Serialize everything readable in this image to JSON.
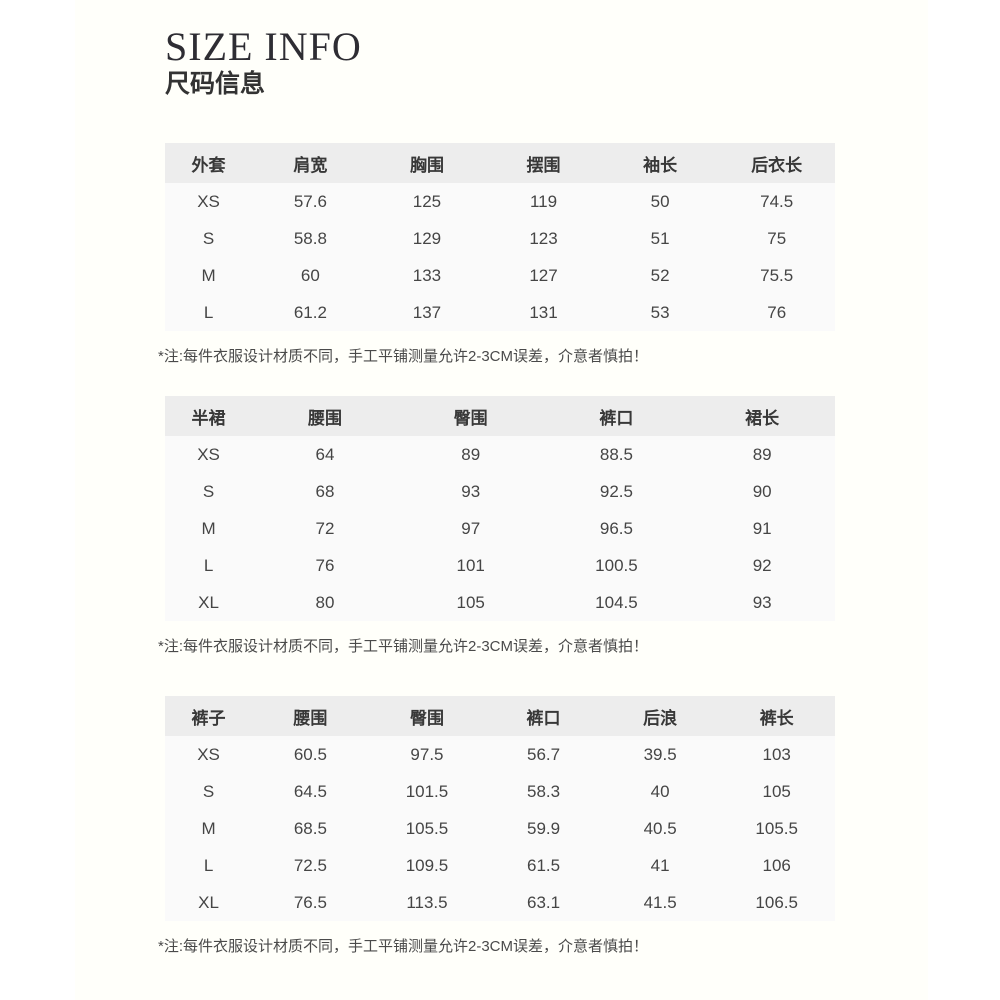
{
  "page": {
    "title_en": "SIZE INFO",
    "title_zh": "尺码信息"
  },
  "colors": {
    "page_margin_bg": "#ffffff",
    "content_bg": "#fffffa",
    "header_row_bg": "#ededed",
    "table_body_bg": "#fafafa",
    "text": "#454545"
  },
  "tables": [
    {
      "name": "outerwear",
      "headers": [
        "外套",
        "肩宽",
        "胸围",
        "摆围",
        "袖长",
        "后衣长"
      ],
      "rows": [
        [
          "XS",
          "57.6",
          "125",
          "119",
          "50",
          "74.5"
        ],
        [
          "S",
          "58.8",
          "129",
          "123",
          "51",
          "75"
        ],
        [
          "M",
          "60",
          "133",
          "127",
          "52",
          "75.5"
        ],
        [
          "L",
          "61.2",
          "137",
          "131",
          "53",
          "76"
        ]
      ],
      "note": "*注:每件衣服设计材质不同，手工平铺测量允许2-3CM误差，介意者慎拍！"
    },
    {
      "name": "skirt",
      "headers": [
        "半裙",
        "腰围",
        "臀围",
        "裤口",
        "裙长"
      ],
      "rows": [
        [
          "XS",
          "64",
          "89",
          "88.5",
          "89"
        ],
        [
          "S",
          "68",
          "93",
          "92.5",
          "90"
        ],
        [
          "M",
          "72",
          "97",
          "96.5",
          "91"
        ],
        [
          "L",
          "76",
          "101",
          "100.5",
          "92"
        ],
        [
          "XL",
          "80",
          "105",
          "104.5",
          "93"
        ]
      ],
      "note": "*注:每件衣服设计材质不同，手工平铺测量允许2-3CM误差，介意者慎拍！"
    },
    {
      "name": "pants",
      "headers": [
        "裤子",
        "腰围",
        "臀围",
        "裤口",
        "后浪",
        "裤长"
      ],
      "rows": [
        [
          "XS",
          "60.5",
          "97.5",
          "56.7",
          "39.5",
          "103"
        ],
        [
          "S",
          "64.5",
          "101.5",
          "58.3",
          "40",
          "105"
        ],
        [
          "M",
          "68.5",
          "105.5",
          "59.9",
          "40.5",
          "105.5"
        ],
        [
          "L",
          "72.5",
          "109.5",
          "61.5",
          "41",
          "106"
        ],
        [
          "XL",
          "76.5",
          "113.5",
          "63.1",
          "41.5",
          "106.5"
        ]
      ],
      "note": "*注:每件衣服设计材质不同，手工平铺测量允许2-3CM误差，介意者慎拍！"
    }
  ]
}
